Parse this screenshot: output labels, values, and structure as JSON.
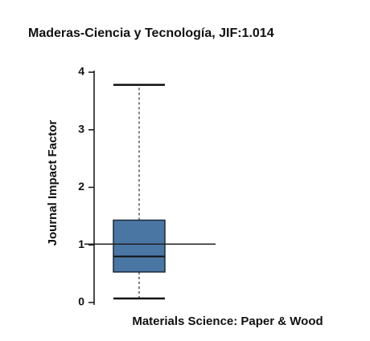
{
  "chart_data": {
    "type": "box",
    "title": "Maderas-Ciencia y Tecnología, JIF:1.014",
    "y_label": "Journal Impact Factor",
    "categories": [
      "Materials Science: Paper & Wood"
    ],
    "series": [
      {
        "color": "#4a76a4",
        "whisker_low": [
          0.07
        ],
        "q1": [
          0.53
        ],
        "median": [
          0.8
        ],
        "q3": [
          1.43
        ],
        "whisker_high": [
          3.78
        ]
      }
    ],
    "reference_line": 1.014,
    "ylim": [
      0,
      4
    ],
    "yticks": [
      0,
      1,
      2,
      3,
      4
    ]
  }
}
